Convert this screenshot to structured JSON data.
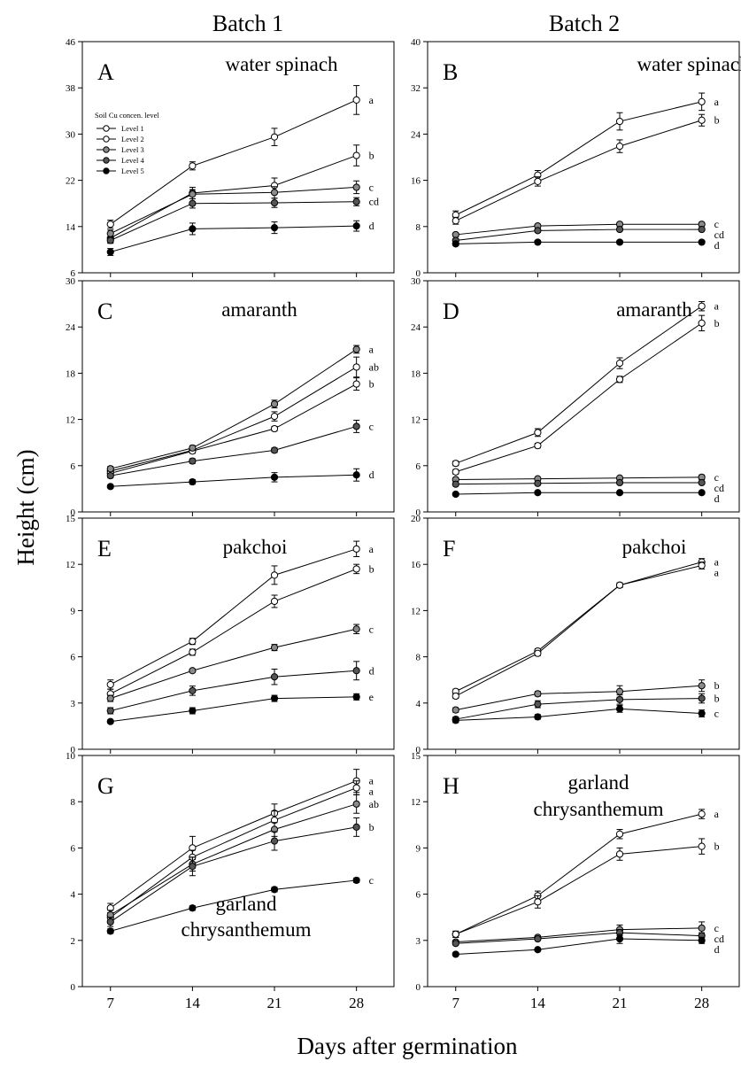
{
  "column_titles": [
    "Batch 1",
    "Batch 2"
  ],
  "ylabel": "Height (cm)",
  "xlabel": "Days after germination",
  "legend": {
    "title": "Soil Cu concen. level",
    "entries": [
      "Level 1",
      "Level 2",
      "Level 3",
      "Level 4",
      "Level 5"
    ]
  },
  "colors": {
    "level1": "#ffffff",
    "level2": "#ffffff",
    "level3": "#8a8a8a",
    "level4": "#555555",
    "level5": "#000000"
  },
  "chart_data": [
    {
      "type": "line",
      "letter": "A",
      "title": [
        "water spinach"
      ],
      "x": [
        7,
        14,
        21,
        28
      ],
      "ylim": [
        6,
        46
      ],
      "yticks": [
        6,
        14,
        22,
        30,
        38,
        46
      ],
      "series": [
        {
          "name": "Level 1",
          "values": [
            14.4,
            24.5,
            29.5,
            35.9
          ],
          "errors": [
            0.7,
            0.7,
            1.5,
            2.5
          ],
          "label": "a"
        },
        {
          "name": "Level 2",
          "values": [
            12.0,
            19.8,
            21.1,
            26.3
          ],
          "errors": [
            0.8,
            1.0,
            1.3,
            1.8
          ],
          "label": "b"
        },
        {
          "name": "Level 3",
          "values": [
            12.8,
            19.6,
            19.9,
            20.8
          ],
          "errors": [
            0.6,
            0.8,
            1.0,
            1.1
          ],
          "label": "c"
        },
        {
          "name": "Level 4",
          "values": [
            11.6,
            18.0,
            18.1,
            18.3
          ],
          "errors": [
            0.5,
            0.8,
            0.8,
            0.7
          ],
          "label": "cd"
        },
        {
          "name": "Level 5",
          "values": [
            9.6,
            13.6,
            13.8,
            14.1
          ],
          "errors": [
            0.6,
            1.0,
            1.0,
            0.9
          ],
          "label": "d"
        }
      ]
    },
    {
      "type": "line",
      "letter": "B",
      "title": [
        "water spinach"
      ],
      "x": [
        7,
        14,
        21,
        28
      ],
      "ylim": [
        0,
        40
      ],
      "yticks": [
        0,
        8,
        16,
        24,
        32,
        40
      ],
      "series": [
        {
          "name": "Level 1",
          "values": [
            10.0,
            16.9,
            26.2,
            29.6
          ],
          "errors": [
            0.7,
            0.8,
            1.5,
            1.5
          ],
          "label": "a"
        },
        {
          "name": "Level 2",
          "values": [
            9.0,
            15.8,
            21.9,
            26.4
          ],
          "errors": [
            0.6,
            0.8,
            1.1,
            1.0
          ],
          "label": "b"
        },
        {
          "name": "Level 3",
          "values": [
            6.6,
            8.1,
            8.4,
            8.4
          ],
          "errors": [
            0.3,
            0.3,
            0.3,
            0.3
          ],
          "label": "c"
        },
        {
          "name": "Level 4",
          "values": [
            5.6,
            7.3,
            7.5,
            7.5
          ],
          "errors": [
            0.3,
            0.3,
            0.3,
            0.3
          ],
          "label": "cd"
        },
        {
          "name": "Level 5",
          "values": [
            5.0,
            5.3,
            5.3,
            5.3
          ],
          "errors": [
            0.3,
            0.3,
            0.3,
            0.3
          ],
          "label": "d"
        }
      ]
    },
    {
      "type": "line",
      "letter": "C",
      "title": [
        "amaranth"
      ],
      "x": [
        7,
        14,
        21,
        28
      ],
      "ylim": [
        0,
        30
      ],
      "yticks": [
        0,
        6,
        12,
        18,
        24,
        30
      ],
      "series": [
        {
          "name": "Level 1",
          "values": [
            5.3,
            8.0,
            12.4,
            18.8
          ],
          "errors": [
            0.3,
            0.3,
            0.6,
            1.3
          ],
          "label": "ab"
        },
        {
          "name": "Level 2",
          "values": [
            5.0,
            7.9,
            10.8,
            16.6
          ],
          "errors": [
            0.3,
            0.3,
            0.3,
            0.8
          ],
          "label": "b"
        },
        {
          "name": "Level 3",
          "values": [
            5.6,
            8.3,
            14.0,
            21.1
          ],
          "errors": [
            0.3,
            0.3,
            0.5,
            0.5
          ],
          "label": "a"
        },
        {
          "name": "Level 4",
          "values": [
            4.7,
            6.6,
            8.0,
            11.1
          ],
          "errors": [
            0.3,
            0.3,
            0.3,
            0.8
          ],
          "label": "c"
        },
        {
          "name": "Level 5",
          "values": [
            3.3,
            3.9,
            4.5,
            4.8
          ],
          "errors": [
            0.2,
            0.3,
            0.6,
            0.8
          ],
          "label": "d"
        }
      ]
    },
    {
      "type": "line",
      "letter": "D",
      "title": [
        "amaranth"
      ],
      "x": [
        7,
        14,
        21,
        28
      ],
      "ylim": [
        0,
        30
      ],
      "yticks": [
        0,
        6,
        12,
        18,
        24,
        30
      ],
      "series": [
        {
          "name": "Level 1",
          "values": [
            6.3,
            10.3,
            19.3,
            26.7
          ],
          "errors": [
            0.3,
            0.5,
            0.7,
            0.6
          ],
          "label": "a"
        },
        {
          "name": "Level 2",
          "values": [
            5.2,
            8.6,
            17.2,
            24.5
          ],
          "errors": [
            0.3,
            0.3,
            0.4,
            1.0
          ],
          "label": "b"
        },
        {
          "name": "Level 3",
          "values": [
            4.2,
            4.3,
            4.4,
            4.5
          ],
          "errors": [
            0.2,
            0.2,
            0.2,
            0.3
          ],
          "label": "c"
        },
        {
          "name": "Level 4",
          "values": [
            3.6,
            3.7,
            3.8,
            3.8
          ],
          "errors": [
            0.2,
            0.2,
            0.2,
            0.2
          ],
          "label": "cd"
        },
        {
          "name": "Level 5",
          "values": [
            2.3,
            2.5,
            2.5,
            2.5
          ],
          "errors": [
            0.2,
            0.2,
            0.2,
            0.2
          ],
          "label": "d"
        }
      ]
    },
    {
      "type": "line",
      "letter": "E",
      "title": [
        "pakchoi"
      ],
      "x": [
        7,
        14,
        21,
        28
      ],
      "ylim": [
        0,
        15
      ],
      "yticks": [
        0,
        3,
        6,
        9,
        12,
        15
      ],
      "series": [
        {
          "name": "Level 1",
          "values": [
            4.2,
            7.0,
            11.3,
            13.0
          ],
          "errors": [
            0.3,
            0.2,
            0.6,
            0.5
          ],
          "label": "a"
        },
        {
          "name": "Level 2",
          "values": [
            3.6,
            6.3,
            9.6,
            11.7
          ],
          "errors": [
            0.3,
            0.2,
            0.4,
            0.3
          ],
          "label": "b"
        },
        {
          "name": "Level 3",
          "values": [
            3.3,
            5.1,
            6.6,
            7.8
          ],
          "errors": [
            0.2,
            0.1,
            0.2,
            0.3
          ],
          "label": "c"
        },
        {
          "name": "Level 4",
          "values": [
            2.5,
            3.8,
            4.7,
            5.1
          ],
          "errors": [
            0.2,
            0.3,
            0.5,
            0.6
          ],
          "label": "d"
        },
        {
          "name": "Level 5",
          "values": [
            1.8,
            2.5,
            3.3,
            3.4
          ],
          "errors": [
            0.1,
            0.2,
            0.2,
            0.2
          ],
          "label": "e"
        }
      ]
    },
    {
      "type": "line",
      "letter": "F",
      "title": [
        "pakchoi"
      ],
      "x": [
        7,
        14,
        21,
        28
      ],
      "ylim": [
        0,
        20
      ],
      "yticks": [
        0,
        4,
        8,
        12,
        16,
        20
      ],
      "series": [
        {
          "name": "Level 1",
          "values": [
            5.0,
            8.5,
            14.2,
            16.2
          ],
          "errors": [
            0.2,
            0.2,
            0.2,
            0.3
          ],
          "label": "a"
        },
        {
          "name": "Level 2",
          "values": [
            4.6,
            8.3,
            14.2,
            15.9
          ],
          "errors": [
            0.2,
            0.2,
            0.2,
            0.3
          ],
          "label": "a"
        },
        {
          "name": "Level 3",
          "values": [
            3.4,
            4.8,
            5.0,
            5.5
          ],
          "errors": [
            0.2,
            0.2,
            0.5,
            0.5
          ],
          "label": "b"
        },
        {
          "name": "Level 4",
          "values": [
            2.6,
            3.9,
            4.3,
            4.4
          ],
          "errors": [
            0.2,
            0.3,
            0.4,
            0.4
          ],
          "label": "b"
        },
        {
          "name": "Level 5",
          "values": [
            2.5,
            2.8,
            3.5,
            3.1
          ],
          "errors": [
            0.2,
            0.2,
            0.3,
            0.3
          ],
          "label": "c"
        }
      ]
    },
    {
      "type": "line",
      "letter": "G",
      "title": [
        "garland",
        "chrysanthemum"
      ],
      "x": [
        7,
        14,
        21,
        28
      ],
      "ylim": [
        0,
        10
      ],
      "yticks": [
        0,
        2,
        4,
        6,
        8,
        10
      ],
      "series": [
        {
          "name": "Level 1",
          "values": [
            3.4,
            6.0,
            7.5,
            8.9
          ],
          "errors": [
            0.2,
            0.5,
            0.4,
            0.5
          ],
          "label": "a"
        },
        {
          "name": "Level 2",
          "values": [
            3.0,
            5.6,
            7.2,
            8.6
          ],
          "errors": [
            0.2,
            0.3,
            0.4,
            0.3
          ],
          "label": "a"
        },
        {
          "name": "Level 3",
          "values": [
            3.1,
            5.3,
            6.8,
            7.9
          ],
          "errors": [
            0.2,
            0.3,
            0.3,
            0.4
          ],
          "label": "ab"
        },
        {
          "name": "Level 4",
          "values": [
            2.8,
            5.2,
            6.3,
            6.9
          ],
          "errors": [
            0.2,
            0.4,
            0.4,
            0.4
          ],
          "label": "b"
        },
        {
          "name": "Level 5",
          "values": [
            2.4,
            3.4,
            4.2,
            4.6
          ],
          "errors": [
            0.1,
            0.1,
            0.1,
            0.1
          ],
          "label": "c"
        }
      ]
    },
    {
      "type": "line",
      "letter": "H",
      "title": [
        "garland",
        "chrysanthemum"
      ],
      "x": [
        7,
        14,
        21,
        28
      ],
      "ylim": [
        0,
        15
      ],
      "yticks": [
        0,
        3,
        6,
        9,
        12,
        15
      ],
      "series": [
        {
          "name": "Level 1",
          "values": [
            3.4,
            5.9,
            9.9,
            11.2
          ],
          "errors": [
            0.2,
            0.3,
            0.3,
            0.3
          ],
          "label": "a"
        },
        {
          "name": "Level 2",
          "values": [
            3.4,
            5.5,
            8.6,
            9.1
          ],
          "errors": [
            0.2,
            0.4,
            0.4,
            0.5
          ],
          "label": "b"
        },
        {
          "name": "Level 3",
          "values": [
            2.9,
            3.2,
            3.7,
            3.8
          ],
          "errors": [
            0.1,
            0.1,
            0.3,
            0.4
          ],
          "label": "c"
        },
        {
          "name": "Level 4",
          "values": [
            2.8,
            3.1,
            3.5,
            3.3
          ],
          "errors": [
            0.1,
            0.1,
            0.2,
            0.2
          ],
          "label": "cd"
        },
        {
          "name": "Level 5",
          "values": [
            2.1,
            2.4,
            3.1,
            3.0
          ],
          "errors": [
            0.1,
            0.1,
            0.3,
            0.2
          ],
          "label": "d"
        }
      ]
    }
  ]
}
